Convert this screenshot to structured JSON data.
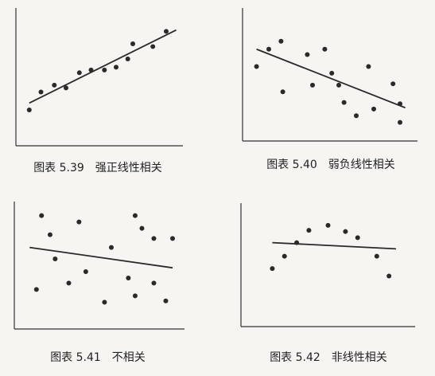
{
  "chart_data": [
    {
      "type": "scatter",
      "title": "图表 5.39　强正线性相关",
      "xlim": [
        0,
        100
      ],
      "ylim": [
        0,
        100
      ],
      "color": "#2a2a2a",
      "x": [
        8,
        15,
        23,
        30,
        38,
        45,
        53,
        60,
        67,
        70,
        82,
        90
      ],
      "y": [
        26,
        39,
        44,
        42,
        53,
        55,
        55,
        57,
        63,
        74,
        72,
        83
      ],
      "trend": {
        "x": [
          8,
          96
        ],
        "y": [
          31,
          84
        ]
      }
    },
    {
      "type": "scatter",
      "title": "图表 5.40　弱负线性相关",
      "xlim": [
        0,
        100
      ],
      "ylim": [
        0,
        100
      ],
      "color": "#2a2a2a",
      "x": [
        8,
        15,
        22,
        23,
        37,
        40,
        47,
        51,
        55,
        58,
        65,
        72,
        75,
        86,
        90,
        90
      ],
      "y": [
        56,
        69,
        75,
        37,
        65,
        42,
        69,
        51,
        42,
        29,
        19,
        56,
        24,
        43,
        28,
        14
      ],
      "trend": {
        "x": [
          8,
          93
        ],
        "y": [
          69,
          25
        ]
      }
    },
    {
      "type": "scatter",
      "title": "图表 5.41　不相关",
      "xlim": [
        0,
        100
      ],
      "ylim": [
        0,
        100
      ],
      "color": "#2a2a2a",
      "x": [
        13,
        16,
        21,
        24,
        32,
        38,
        42,
        53,
        57,
        67,
        71,
        71,
        75,
        82,
        82,
        89,
        93
      ],
      "y": [
        31,
        89,
        74,
        55,
        36,
        84,
        45,
        21,
        64,
        40,
        89,
        26,
        79,
        36,
        71,
        22,
        71
      ],
      "trend": {
        "x": [
          9,
          93
        ],
        "y": [
          64,
          48
        ]
      }
    },
    {
      "type": "scatter",
      "title": "图表 5.42　非线性相关",
      "xlim": [
        0,
        100
      ],
      "ylim": [
        0,
        100
      ],
      "color": "#2a2a2a",
      "x": [
        18,
        25,
        32,
        39,
        50,
        60,
        67,
        78,
        85
      ],
      "y": [
        47,
        57,
        68,
        78,
        82,
        77,
        72,
        57,
        41
      ],
      "trend": {
        "x": [
          18,
          89
        ],
        "y": [
          68,
          63
        ]
      }
    }
  ]
}
